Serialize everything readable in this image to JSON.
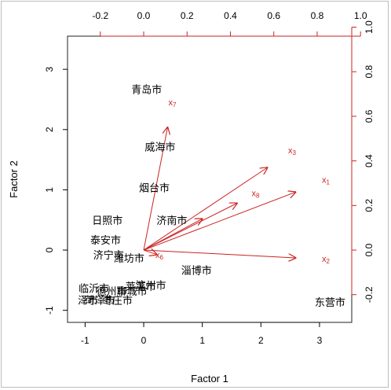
{
  "chart_data": {
    "type": "scatter",
    "subtype": "biplot",
    "xlabel": "Factor 1",
    "ylabel": "Factor 2",
    "xlim": [
      -1.3,
      3.55
    ],
    "ylim": [
      -1.2,
      3.55
    ],
    "x_ticks": [
      -1,
      0,
      1,
      2,
      3
    ],
    "y_ticks": [
      -1,
      0,
      1,
      2,
      3
    ],
    "top_ticks": [
      "-0.2",
      "0.0",
      "0.2",
      "0.4",
      "0.6",
      "0.8",
      "1.0"
    ],
    "right_ticks": [
      "-0.2",
      "0.0",
      "0.2",
      "0.4",
      "0.6",
      "0.8",
      "1.0"
    ],
    "loading_scale": 3.7,
    "points": [
      {
        "label": "青岛市",
        "x": 0.05,
        "y": 2.65
      },
      {
        "label": "威海市",
        "x": 0.28,
        "y": 1.7
      },
      {
        "label": "烟台市",
        "x": 0.18,
        "y": 1.02
      },
      {
        "label": "济南市",
        "x": 0.48,
        "y": 0.48
      },
      {
        "label": "日照市",
        "x": -0.62,
        "y": 0.48
      },
      {
        "label": "泰安市",
        "x": -0.65,
        "y": 0.15
      },
      {
        "label": "济宁市",
        "x": -0.6,
        "y": -0.1
      },
      {
        "label": "潍坊市",
        "x": -0.25,
        "y": -0.15
      },
      {
        "label": "淄博市",
        "x": 0.9,
        "y": -0.35
      },
      {
        "label": "滨州市",
        "x": 0.12,
        "y": -0.6
      },
      {
        "label": "临沂市",
        "x": -0.85,
        "y": -0.65
      },
      {
        "label": "德州市",
        "x": -0.55,
        "y": -0.7
      },
      {
        "label": "聊城市",
        "x": -0.2,
        "y": -0.7
      },
      {
        "label": "莱芜市",
        "x": -0.05,
        "y": -0.62
      },
      {
        "label": "泽市",
        "x": -0.95,
        "y": -0.85
      },
      {
        "label": "菏泽市",
        "x": -0.75,
        "y": -0.85
      },
      {
        "label": "枣庄市",
        "x": -0.45,
        "y": -0.85
      },
      {
        "label": "东营市",
        "x": 3.18,
        "y": -0.88
      }
    ],
    "loadings": [
      {
        "label": "x",
        "sub": "1",
        "lx": 0.7,
        "ly": 0.26
      },
      {
        "label": "x",
        "sub": "2",
        "lx": 0.7,
        "ly": -0.035
      },
      {
        "label": "x",
        "sub": "3",
        "lx": 0.57,
        "ly": 0.37
      },
      {
        "label": "x",
        "sub": "6",
        "lx": 0.06,
        "ly": -0.02
      },
      {
        "label": "x",
        "sub": "7",
        "lx": 0.11,
        "ly": 0.55
      },
      {
        "label": "x",
        "sub": "8",
        "lx": 0.43,
        "ly": 0.21
      },
      {
        "label": "",
        "sub": "",
        "lx": 0.27,
        "ly": 0.14
      }
    ]
  }
}
